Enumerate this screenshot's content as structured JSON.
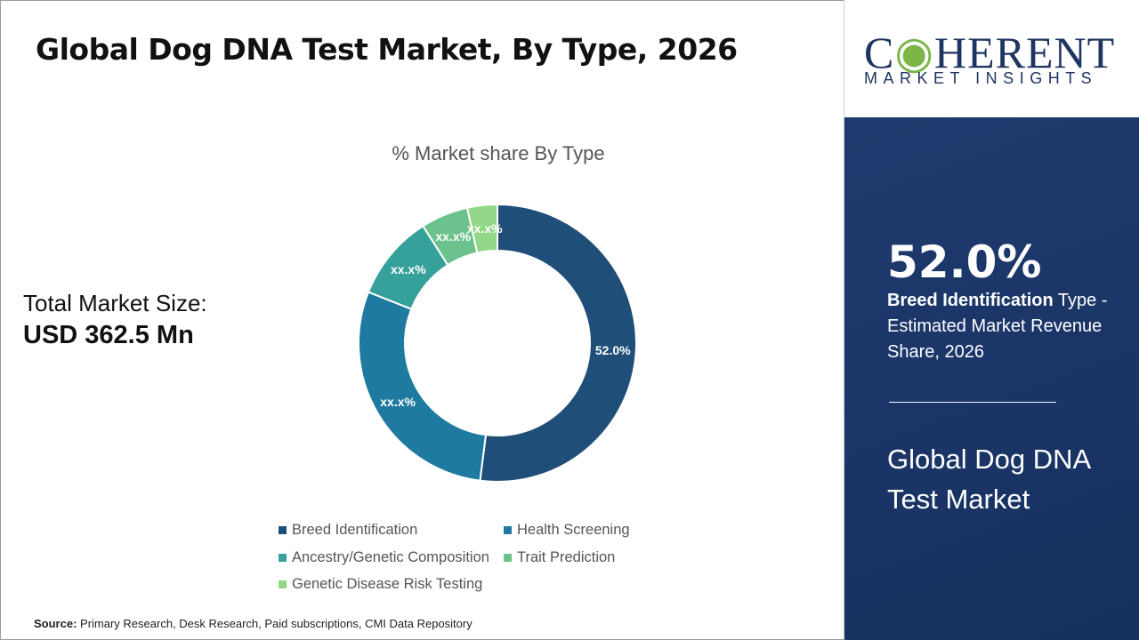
{
  "header": {
    "title": "Global Dog DNA Test Market, By Type, 2026"
  },
  "total": {
    "label": "Total Market Size:",
    "value": "USD 362.5 Mn"
  },
  "chart_data": {
    "type": "pie",
    "subtype": "donut",
    "title": "% Market share By Type",
    "categories": [
      "Breed Identification",
      "Health Screening",
      "Ancestry/Genetic Composition",
      "Trait Prediction",
      "Genetic Disease Risk Testing"
    ],
    "values": [
      52.0,
      29.0,
      10.0,
      5.5,
      3.5
    ],
    "data_labels": [
      "52.0%",
      "xx.x%",
      "xx.x%",
      "xx.x%",
      "xx.x%"
    ],
    "colors": [
      "#1f4e79",
      "#1f7aa0",
      "#36a09a",
      "#6cc28c",
      "#93d888"
    ],
    "legend_position": "bottom"
  },
  "source": {
    "label": "Source:",
    "text": " Primary Research, Desk Research, Paid subscriptions, CMI Data Repository"
  },
  "sidebar": {
    "logo_line1": "COHERENT",
    "logo_line2": "MARKET INSIGHTS",
    "highlight_value": "52.0%",
    "highlight_bold": "Breed Identification",
    "highlight_rest": " Type - Estimated Market Revenue Share, 2026",
    "market_name": "Global Dog DNA Test Market"
  }
}
